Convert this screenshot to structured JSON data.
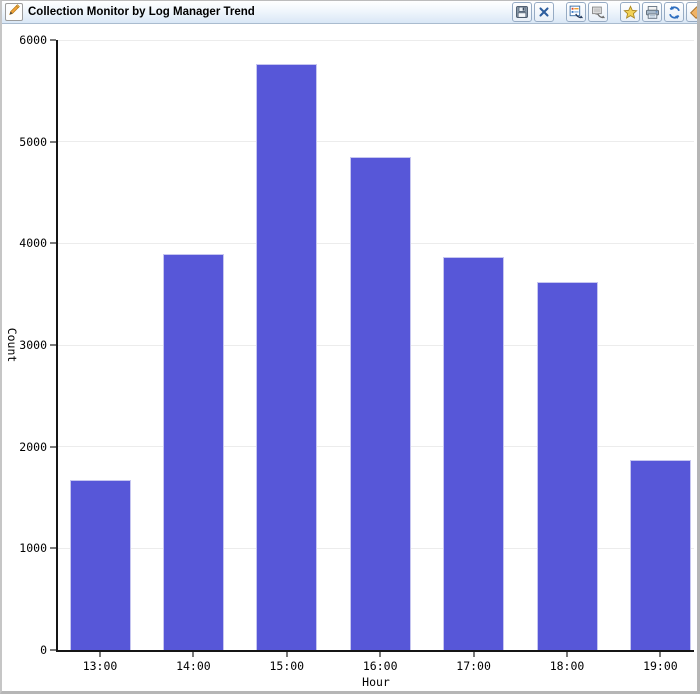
{
  "window": {
    "title": "Collection Monitor by Log Manager Trend",
    "title_icon": "pencil-icon",
    "toolbar": [
      {
        "name": "save",
        "icon": "floppy-disk-icon"
      },
      {
        "name": "close",
        "icon": "close-x-icon"
      },
      {
        "name": "export-chart",
        "icon": "chart-with-arrow-icon"
      },
      {
        "name": "export-image",
        "icon": "monitor-with-arrow-icon"
      },
      {
        "name": "favorite",
        "icon": "star-icon"
      },
      {
        "name": "print",
        "icon": "printer-icon"
      },
      {
        "name": "refresh",
        "icon": "refresh-arrows-icon"
      },
      {
        "name": "tag",
        "icon": "tag-icon"
      }
    ]
  },
  "chart_data": {
    "type": "bar",
    "title": "Collection Monitor by Log Manager Trend",
    "xlabel": "Hour",
    "ylabel": "Count",
    "categories": [
      "13:00",
      "14:00",
      "15:00",
      "16:00",
      "17:00",
      "18:00",
      "19:00"
    ],
    "values": [
      1670,
      3900,
      5760,
      4850,
      3870,
      3620,
      1870
    ],
    "ylim": [
      0,
      6000
    ],
    "yticks": [
      0,
      1000,
      2000,
      3000,
      4000,
      5000,
      6000
    ],
    "grid": true,
    "legend": "none",
    "bar_color": "#5757d8",
    "bar_border_color": "#c6c6f0",
    "gridline_color": "#ececec"
  }
}
